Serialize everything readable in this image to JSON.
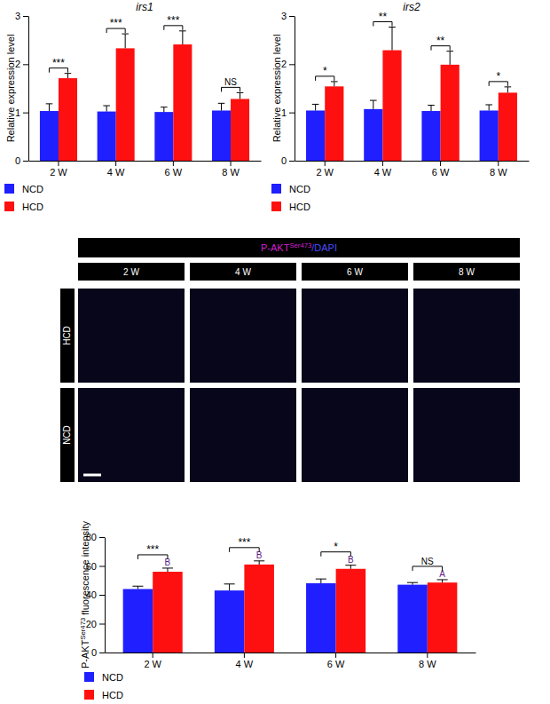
{
  "chart_data": [
    {
      "type": "bar",
      "title": "irs1",
      "ylabel": [
        "Relative expression level"
      ],
      "categories": [
        "2 W",
        "4 W",
        "6 W",
        "8 W"
      ],
      "series": [
        {
          "name": "NCD",
          "color": "#1f1fff",
          "values": [
            1.03,
            1.02,
            1.01,
            1.04
          ],
          "errors": [
            0.15,
            0.12,
            0.1,
            0.15
          ]
        },
        {
          "name": "HCD",
          "color": "#ff1010",
          "values": [
            1.71,
            2.33,
            2.41,
            1.28
          ],
          "errors": [
            0.1,
            0.3,
            0.28,
            0.13
          ]
        }
      ],
      "significance": [
        "***",
        "***",
        "***",
        "NS"
      ],
      "ylim": [
        0,
        3
      ],
      "yticks": [
        0,
        1,
        2,
        3
      ],
      "legend": "bottom-left"
    },
    {
      "type": "bar",
      "title": "irs2",
      "ylabel": [
        "Relative expression level"
      ],
      "categories": [
        "2 W",
        "4 W",
        "6 W",
        "8 W"
      ],
      "series": [
        {
          "name": "NCD",
          "color": "#1f1fff",
          "values": [
            1.04,
            1.07,
            1.03,
            1.04
          ],
          "errors": [
            0.13,
            0.18,
            0.12,
            0.12
          ]
        },
        {
          "name": "HCD",
          "color": "#ff1010",
          "values": [
            1.54,
            2.29,
            1.99,
            1.41
          ],
          "errors": [
            0.1,
            0.48,
            0.28,
            0.12
          ]
        }
      ],
      "significance": [
        "*",
        "**",
        "**",
        "*"
      ],
      "ylim": [
        0,
        3
      ],
      "yticks": [
        0,
        1,
        2,
        3
      ],
      "legend": "bottom-left"
    },
    {
      "type": "bar",
      "ylabel": [
        "P-AKT",
        "Ser473",
        " fluorescence intensity"
      ],
      "categories": [
        "2 W",
        "4 W",
        "6 W",
        "8 W"
      ],
      "series": [
        {
          "name": "NCD",
          "color": "#1f1fff",
          "values": [
            44,
            43,
            48,
            47
          ],
          "errors": [
            2,
            4.5,
            3,
            1.5
          ]
        },
        {
          "name": "HCD",
          "color": "#ff1010",
          "values": [
            56,
            61,
            58,
            48.5
          ],
          "errors": [
            2.5,
            2.5,
            2.5,
            2
          ],
          "letters": [
            "B",
            "B",
            "B",
            "A"
          ]
        }
      ],
      "significance": [
        "***",
        "***",
        "*",
        "NS"
      ],
      "ylim": [
        0,
        80
      ],
      "yticks": [
        0,
        20,
        40,
        60,
        80
      ],
      "legend": "bottom-left"
    }
  ],
  "image_grid": {
    "header": [
      "P-AKT",
      "Ser473",
      "/DAPI"
    ],
    "columns": [
      "2 W",
      "4 W",
      "6 W",
      "8 W"
    ],
    "rows": [
      "HCD",
      "NCD"
    ]
  }
}
